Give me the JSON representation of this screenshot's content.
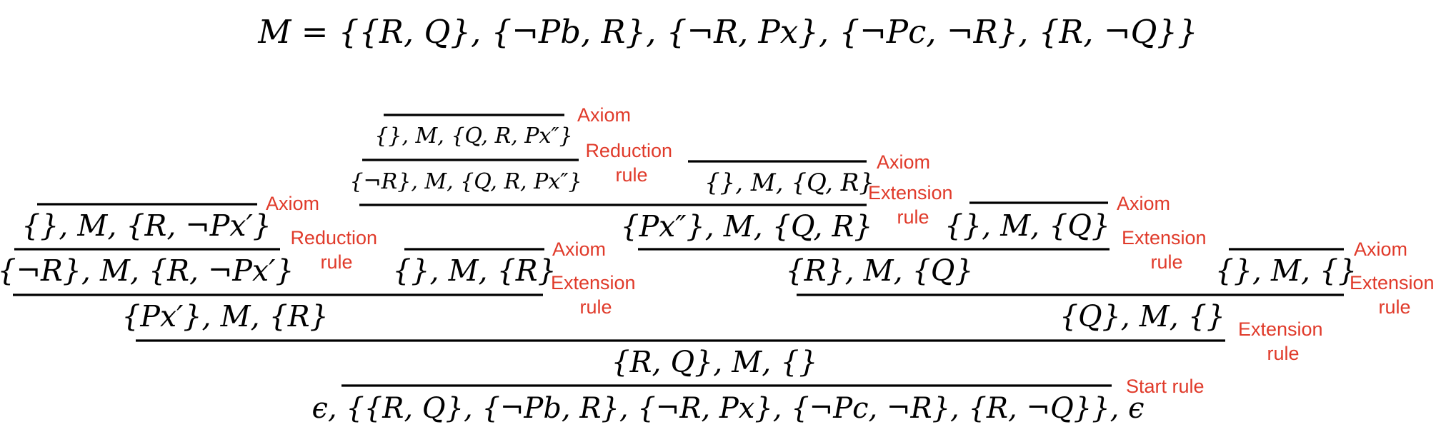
{
  "title_formula": "M = {{R, Q}, {¬Pb, R}, {¬R, Px}, {¬Pc, ¬R}, {R, ¬Q}}",
  "colors": {
    "rule_label": "#e03a2a",
    "formula": "#000000",
    "background": "#ffffff"
  },
  "tableau": {
    "nodes": [
      {
        "id": "n1",
        "text": "{}, M, {Q, R, Px″}"
      },
      {
        "id": "n2",
        "text": "{¬R}, M, {Q, R, Px″}"
      },
      {
        "id": "n3",
        "text": "{}, M, {Q, R}"
      },
      {
        "id": "n4",
        "text": "{Px″}, M, {Q, R}"
      },
      {
        "id": "n5",
        "text": "{}, M, {R, ¬Px′}"
      },
      {
        "id": "n6",
        "text": "{¬R}, M, {R, ¬Px′}"
      },
      {
        "id": "n7",
        "text": "{}, M, {R}"
      },
      {
        "id": "n8",
        "text": "{}, M, {Q}"
      },
      {
        "id": "n9",
        "text": "{R}, M, {Q}"
      },
      {
        "id": "n10",
        "text": "{}, M, {}"
      },
      {
        "id": "n11",
        "text": "{Px′}, M, {R}"
      },
      {
        "id": "n12",
        "text": "{Q}, M, {}"
      },
      {
        "id": "n13",
        "text": "{R, Q}, M, {}"
      },
      {
        "id": "n14",
        "text": "ϵ, {{R, Q}, {¬Pb, R}, {¬R, Px}, {¬Pc, ¬R}, {R, ¬Q}}, ϵ"
      }
    ],
    "rules": [
      {
        "id": "r_ax1",
        "lines": [
          "Axiom"
        ]
      },
      {
        "id": "r_red1",
        "lines": [
          "Reduction",
          "rule"
        ]
      },
      {
        "id": "r_ax2",
        "lines": [
          "Axiom"
        ]
      },
      {
        "id": "r_ext1",
        "lines": [
          "Extension",
          "rule"
        ]
      },
      {
        "id": "r_ax3",
        "lines": [
          "Axiom"
        ]
      },
      {
        "id": "r_red2",
        "lines": [
          "Reduction",
          "rule"
        ]
      },
      {
        "id": "r_ax4",
        "lines": [
          "Axiom"
        ]
      },
      {
        "id": "r_ext2",
        "lines": [
          "Extension",
          "rule"
        ]
      },
      {
        "id": "r_ax5",
        "lines": [
          "Axiom"
        ]
      },
      {
        "id": "r_ext3",
        "lines": [
          "Extension",
          "rule"
        ]
      },
      {
        "id": "r_ax6",
        "lines": [
          "Axiom"
        ]
      },
      {
        "id": "r_ext4",
        "lines": [
          "Extension",
          "rule"
        ]
      },
      {
        "id": "r_ext5",
        "lines": [
          "Extension",
          "rule"
        ]
      },
      {
        "id": "r_start",
        "lines": [
          "Start rule"
        ]
      }
    ]
  }
}
